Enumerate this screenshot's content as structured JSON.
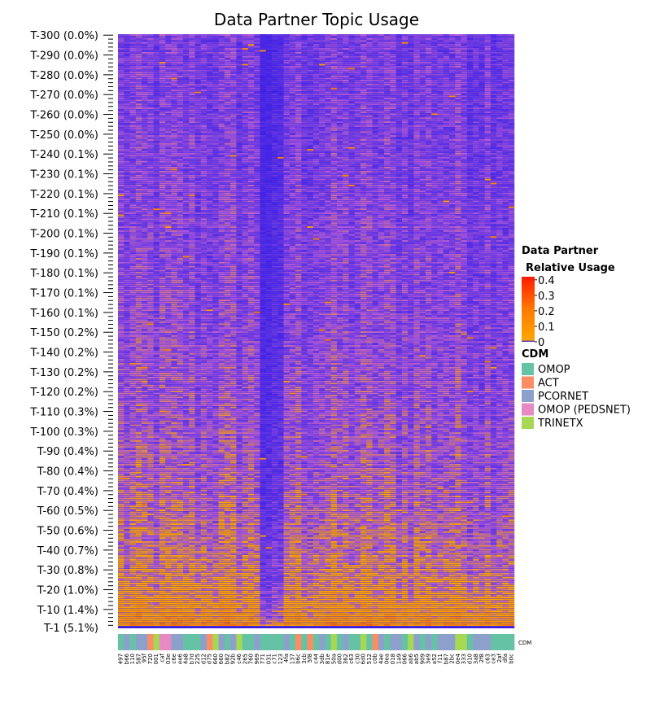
{
  "chart_data": {
    "type": "heatmap",
    "title": "Data Partner Topic Usage",
    "row_labels_shown": [
      "T-300 (0.0%)",
      "T-290 (0.0%)",
      "T-280 (0.0%)",
      "T-270 (0.0%)",
      "T-260 (0.0%)",
      "T-250 (0.0%)",
      "T-240 (0.1%)",
      "T-230 (0.1%)",
      "T-220 (0.1%)",
      "T-210 (0.1%)",
      "T-200 (0.1%)",
      "T-190 (0.1%)",
      "T-180 (0.1%)",
      "T-170 (0.1%)",
      "T-160 (0.1%)",
      "T-150 (0.2%)",
      "T-140 (0.2%)",
      "T-130 (0.2%)",
      "T-120 (0.2%)",
      "T-110 (0.3%)",
      "T-100 (0.3%)",
      "T-90 (0.4%)",
      "T-80 (0.4%)",
      "T-70 (0.4%)",
      "T-60 (0.5%)",
      "T-50 (0.6%)",
      "T-40 (0.7%)",
      "T-30 (0.8%)",
      "T-20 (1.0%)",
      "T-10 (1.4%)",
      "T-1 (5.1%)"
    ],
    "column_labels": [
      "497",
      "b66",
      "110",
      "587",
      "95f",
      "720",
      "001",
      "caf",
      "03e",
      "c6e",
      "ee6",
      "4a8",
      "b7d",
      "225",
      "d12",
      "d75",
      "660",
      "660",
      "b82",
      "92b",
      "c46",
      "265",
      "760",
      "969",
      "771",
      "031",
      "c71",
      "123",
      "4fa",
      "137",
      "b6c",
      "3cb",
      "5f8",
      "c44",
      "3db",
      "81e",
      "50a",
      "d00",
      "362",
      "c63",
      "c30",
      "6d0",
      "512",
      "c0b",
      "4ae",
      "0ea",
      "018",
      "1a9",
      "066",
      "ab6",
      "ab5",
      "909",
      "3e9",
      "a52",
      "f11",
      "b87",
      "2bc",
      "0e4",
      "333",
      "d10",
      "3a8",
      "2f8",
      "c63",
      "ce3",
      "2af",
      "dfa",
      "b0c"
    ],
    "column_cdm": [
      "OMOP",
      "PCORNET",
      "OMOP",
      "PCORNET",
      "PCORNET",
      "ACT",
      "TRINETX",
      "OMOP (PEDSNET)",
      "OMOP (PEDSNET)",
      "PCORNET",
      "PCORNET",
      "OMOP",
      "OMOP",
      "OMOP",
      "PCORNET",
      "ACT",
      "TRINETX",
      "PCORNET",
      "OMOP",
      "PCORNET",
      "TRINETX",
      "OMOP",
      "OMOP",
      "PCORNET",
      "OMOP",
      "OMOP",
      "OMOP",
      "OMOP",
      "PCORNET",
      "OMOP",
      "ACT",
      "OMOP",
      "ACT",
      "OMOP",
      "PCORNET",
      "OMOP",
      "TRINETX",
      "OMOP",
      "PCORNET",
      "OMOP",
      "OMOP",
      "TRINETX",
      "OMOP",
      "ACT",
      "PCORNET",
      "OMOP",
      "PCORNET",
      "PCORNET",
      "OMOP",
      "TRINETX",
      "PCORNET",
      "OMOP",
      "PCORNET",
      "OMOP",
      "PCORNET",
      "PCORNET",
      "PCORNET",
      "TRINETX",
      "TRINETX",
      "OMOP",
      "PCORNET",
      "PCORNET",
      "PCORNET",
      "OMOP",
      "OMOP",
      "OMOP",
      "OMOP"
    ],
    "cdm_strip_label": "CDM",
    "colorbar": {
      "title_line1": "Data Partner",
      "title_line2": "Relative Usage",
      "ticks": [
        "0.4",
        "0.3",
        "0.2",
        "0.1",
        "0"
      ],
      "tick_values": [
        0.4,
        0.3,
        0.2,
        0.1,
        0
      ],
      "range": [
        0,
        0.42
      ],
      "colors": [
        "#3a1fe6",
        "#b45cd6",
        "#ffa500",
        "#ff6a00",
        "#ff1a00"
      ]
    },
    "legend": {
      "title": "CDM",
      "entries": [
        {
          "label": "OMOP",
          "color": "#66c2a5"
        },
        {
          "label": "ACT",
          "color": "#fc8d62"
        },
        {
          "label": "PCORNET",
          "color": "#8da0cb"
        },
        {
          "label": "OMOP (PEDSNET)",
          "color": "#e78ac3"
        },
        {
          "label": "TRINETX",
          "color": "#a6d854"
        }
      ]
    },
    "trend_note_values": {
      "top_rows_mean_usage": 0.0,
      "bottom_rows_mean_usage": 0.12
    }
  }
}
